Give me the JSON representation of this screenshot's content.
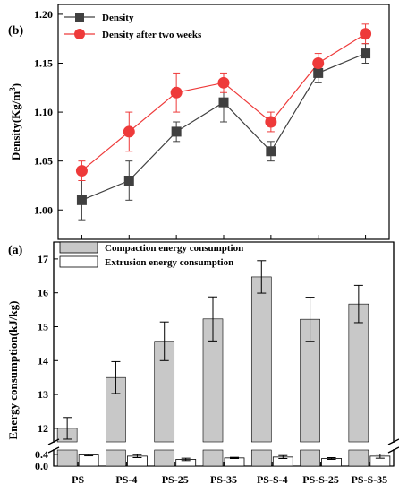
{
  "chart_data": [
    {
      "panel": "(b)",
      "type": "line",
      "categories": [
        "PS",
        "PS-4",
        "PS-25",
        "PS-35",
        "PS-S-4",
        "PS-S-25",
        "PS-S-35"
      ],
      "ylabel": "Density(Kg/m3)",
      "ylim": [
        0.97,
        1.21
      ],
      "yticks": [
        "1.00",
        "1.05",
        "1.10",
        "1.15",
        "1.20"
      ],
      "grid": false,
      "legend_position": "top-left",
      "series": [
        {
          "name": "Density",
          "color": "#404040",
          "marker": "square",
          "values": [
            1.01,
            1.03,
            1.08,
            1.11,
            1.06,
            1.14,
            1.16
          ],
          "errors": [
            0.02,
            0.02,
            0.01,
            0.02,
            0.01,
            0.01,
            0.01
          ]
        },
        {
          "name": "Density after two weeks",
          "color": "#ee3a3a",
          "marker": "circle",
          "values": [
            1.04,
            1.08,
            1.12,
            1.13,
            1.09,
            1.15,
            1.18
          ],
          "errors": [
            0.01,
            0.02,
            0.02,
            0.01,
            0.01,
            0.01,
            0.01
          ]
        }
      ]
    },
    {
      "panel": "(a)",
      "type": "bar",
      "categories": [
        "PS",
        "PS-4",
        "PS-25",
        "PS-35",
        "PS-S-4",
        "PS-S-25",
        "PS-S-35"
      ],
      "xtick_labels": [
        "PS",
        "PS-4",
        "PS-25",
        "PS-35",
        "PS-S-4",
        "PS-S-25",
        "PS-S-35"
      ],
      "ylabel": "Energy consumption(kJ/kg)",
      "ylim_lower": [
        0,
        0.55
      ],
      "ylim_upper": [
        11.6,
        17.5
      ],
      "yticks_lower": [
        "0.0",
        "0.4"
      ],
      "yticks_upper": [
        "12",
        "13",
        "14",
        "15",
        "16",
        "17"
      ],
      "axis_break": true,
      "grid": false,
      "legend_position": "top-left",
      "series": [
        {
          "name": "Compaction energy consumption",
          "color": "#c8c8c8",
          "values": [
            12.0,
            13.5,
            14.57,
            15.23,
            16.47,
            15.22,
            15.67
          ],
          "errors": [
            0.32,
            0.47,
            0.57,
            0.65,
            0.48,
            0.65,
            0.55
          ]
        },
        {
          "name": "Extrusion energy consumption",
          "color": "#ffffff",
          "values": [
            0.38,
            0.34,
            0.23,
            0.28,
            0.31,
            0.26,
            0.34
          ],
          "errors": [
            0.03,
            0.05,
            0.04,
            0.02,
            0.05,
            0.03,
            0.07
          ]
        }
      ]
    }
  ]
}
